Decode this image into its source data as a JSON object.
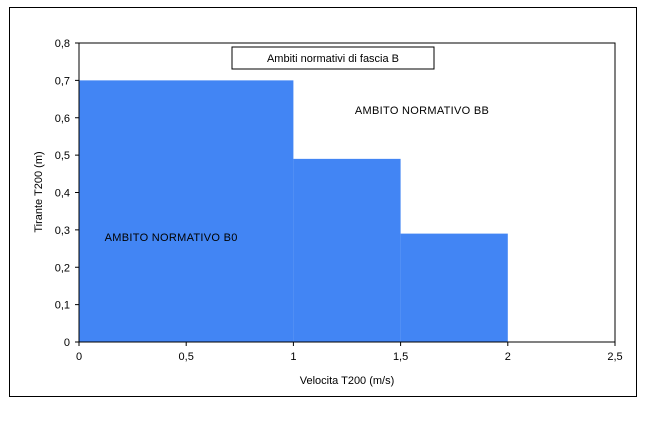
{
  "chart_data": {
    "type": "area",
    "title": "Ambiti normativi di fascia  B",
    "xlabel": "Velocita  T200  (m/s)",
    "ylabel": "Tirante  T200  (m)",
    "xlim": [
      0,
      2.5
    ],
    "ylim": [
      0,
      0.8
    ],
    "xticks": [
      0,
      0.5,
      1,
      1.5,
      2,
      2.5
    ],
    "xtick_labels": [
      "0",
      "0,5",
      "1",
      "1,5",
      "2",
      "2,5"
    ],
    "yticks": [
      0,
      0.1,
      0.2,
      0.3,
      0.4,
      0.5,
      0.6,
      0.7,
      0.8
    ],
    "ytick_labels": [
      "0",
      "0,1",
      "0,2",
      "0,3",
      "0,4",
      "0,5",
      "0,6",
      "0,7",
      "0,8"
    ],
    "grid": false,
    "series": [
      {
        "fill_color": "#4285f4",
        "steps": [
          {
            "x0": 0,
            "x1": 1,
            "y": 0.7
          },
          {
            "x0": 1,
            "x1": 1.5,
            "y": 0.49
          },
          {
            "x0": 1.5,
            "x1": 2,
            "y": 0.29
          }
        ]
      }
    ],
    "annotations": [
      {
        "text": "AMBITO   NORMATIVO   B0",
        "x": 0.43,
        "y": 0.27
      },
      {
        "text": "AMBITO   NORMATIVO   BB",
        "x": 1.6,
        "y": 0.61
      }
    ]
  }
}
